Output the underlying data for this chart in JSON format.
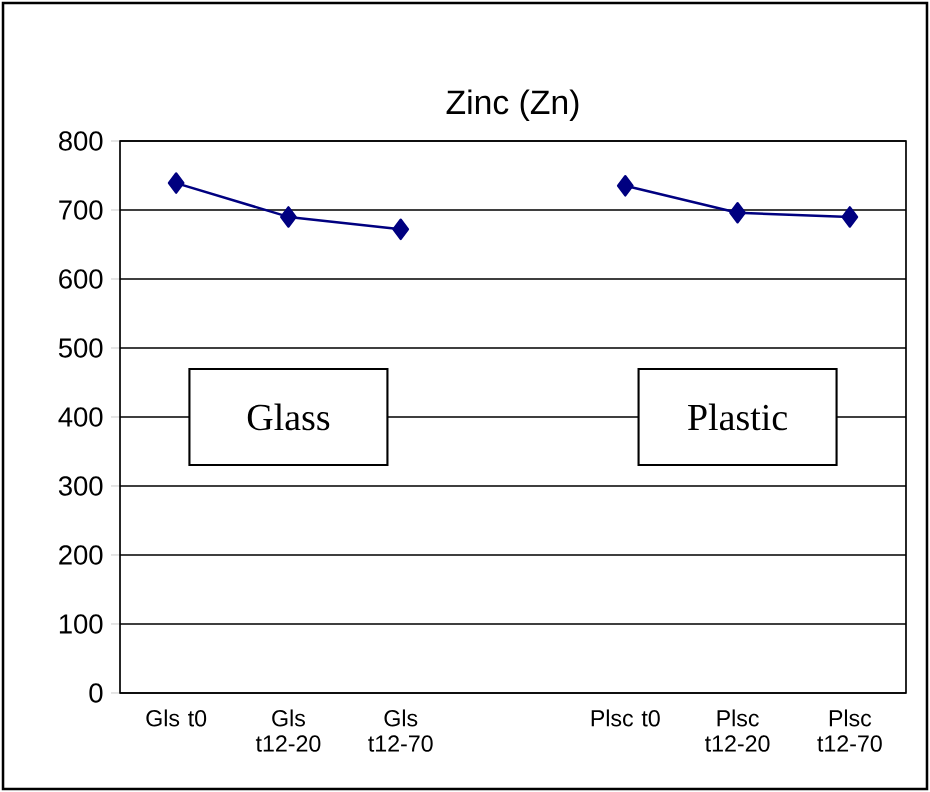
{
  "chart_data": {
    "type": "line",
    "title": "Zinc (Zn)",
    "categories": [
      "Gls t0",
      "Gls t12-20",
      "Gls t12-70",
      null,
      "Plsc t0",
      "Plsc t12-20",
      "Plsc t12-70"
    ],
    "values": [
      739,
      690,
      672,
      null,
      735,
      696,
      690
    ],
    "color": "#000080",
    "marker": "diamond",
    "line_style": "solid",
    "grid": "y",
    "ylim": [
      0,
      800
    ],
    "yticks": [
      0,
      100,
      200,
      300,
      400,
      500,
      600,
      700,
      800
    ],
    "annotations": [
      "Glass",
      "Plastic"
    ]
  }
}
